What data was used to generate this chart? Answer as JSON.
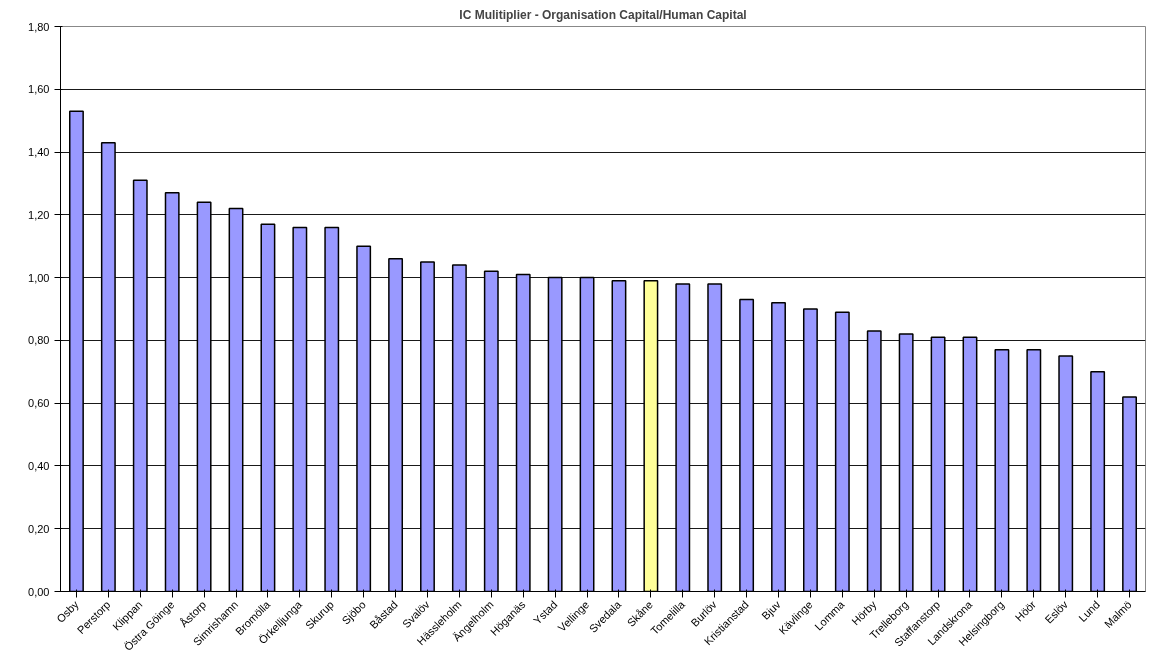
{
  "chart_data": {
    "type": "bar",
    "title": "IC Mulitiplier - Organisation Capital/Human Capital",
    "categories": [
      "Osby",
      "Perstorp",
      "Klippan",
      "Östra Göinge",
      "Åstorp",
      "Simrishamn",
      "Bromölla",
      "Örkelljunga",
      "Skurup",
      "Sjöbo",
      "Båstad",
      "Svalöv",
      "Hässleholm",
      "Ängelholm",
      "Höganäs",
      "Ystad",
      "Vellinge",
      "Svedala",
      "Skåne",
      "Tomelilla",
      "Burlöv",
      "Kristianstad",
      "Bjuv",
      "Kävlinge",
      "Lomma",
      "Hörby",
      "Trelleborg",
      "Staffanstorp",
      "Landskrona",
      "Helsingborg",
      "Höör",
      "Eslöv",
      "Lund",
      "Malmö"
    ],
    "values": [
      1.53,
      1.43,
      1.31,
      1.27,
      1.24,
      1.22,
      1.17,
      1.16,
      1.16,
      1.1,
      1.06,
      1.05,
      1.04,
      1.02,
      1.01,
      1.0,
      1.0,
      0.99,
      0.99,
      0.98,
      0.98,
      0.93,
      0.92,
      0.9,
      0.89,
      0.83,
      0.82,
      0.81,
      0.81,
      0.77,
      0.77,
      0.75,
      0.7,
      0.62
    ],
    "colors": [
      "#9999ff",
      "#9999ff",
      "#9999ff",
      "#9999ff",
      "#9999ff",
      "#9999ff",
      "#9999ff",
      "#9999ff",
      "#9999ff",
      "#9999ff",
      "#9999ff",
      "#9999ff",
      "#9999ff",
      "#9999ff",
      "#9999ff",
      "#9999ff",
      "#9999ff",
      "#9999ff",
      "#ffff99",
      "#9999ff",
      "#9999ff",
      "#9999ff",
      "#9999ff",
      "#9999ff",
      "#9999ff",
      "#9999ff",
      "#9999ff",
      "#9999ff",
      "#9999ff",
      "#9999ff",
      "#9999ff",
      "#9999ff",
      "#9999ff",
      "#9999ff"
    ],
    "ylim": [
      0,
      1.8
    ],
    "yticks": [
      {
        "value": 0,
        "label": "0,00"
      },
      {
        "value": 0.2,
        "label": "0,20"
      },
      {
        "value": 0.4,
        "label": "0,40"
      },
      {
        "value": 0.6,
        "label": "0,60"
      },
      {
        "value": 0.8,
        "label": "0,80"
      },
      {
        "value": 1.0,
        "label": "1,00"
      },
      {
        "value": 1.2,
        "label": "1,20"
      },
      {
        "value": 1.4,
        "label": "1,40"
      },
      {
        "value": 1.6,
        "label": "1,60"
      },
      {
        "value": 1.8,
        "label": "1,80"
      }
    ],
    "grid": "y"
  }
}
